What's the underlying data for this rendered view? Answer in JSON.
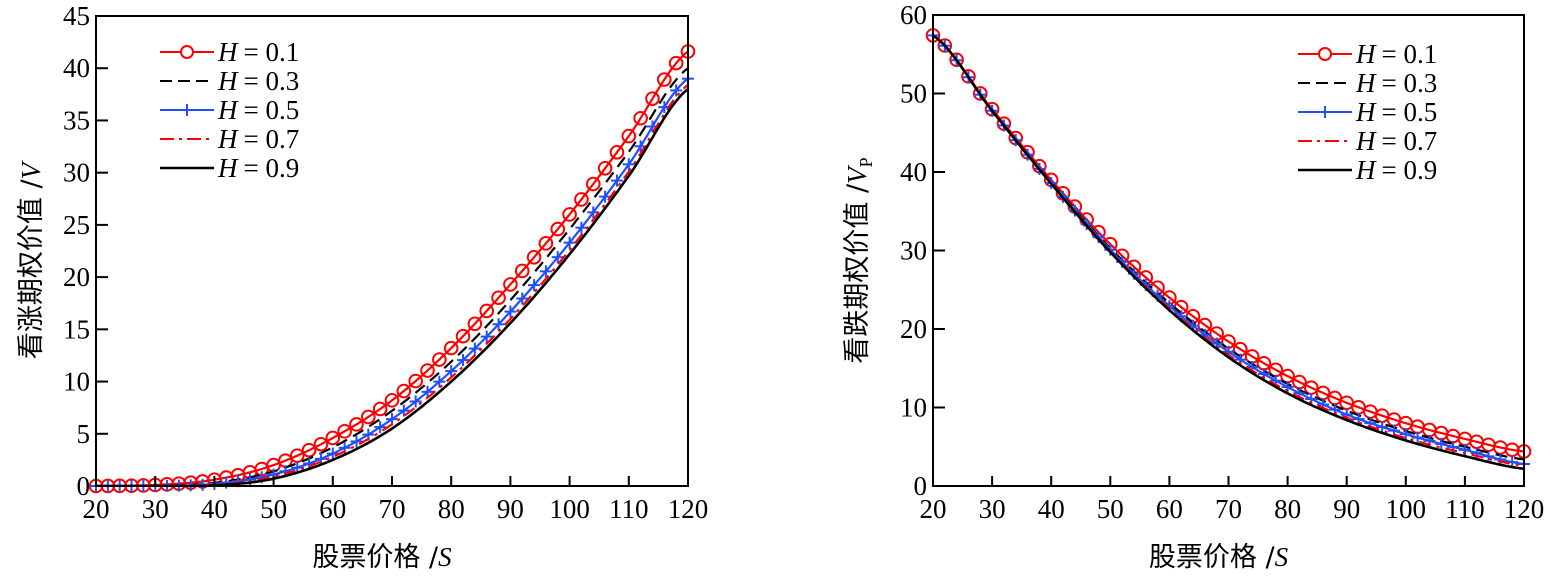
{
  "chart_data": [
    {
      "type": "line",
      "title": "",
      "xlabel": "股票价格 /",
      "xlabel_var": "S",
      "ylabel": "看涨期权价值 /",
      "ylabel_var": "V",
      "ylabel_sub": "",
      "xlim": [
        20,
        120
      ],
      "ylim": [
        0,
        45
      ],
      "xticks": [
        20,
        30,
        40,
        50,
        60,
        70,
        80,
        90,
        100,
        110,
        120
      ],
      "yticks": [
        0,
        5,
        10,
        15,
        20,
        25,
        30,
        35,
        40,
        45
      ],
      "grid": false,
      "legend_position": "top-left",
      "x": [
        20,
        30,
        40,
        50,
        60,
        70,
        80,
        90,
        100,
        110,
        120
      ],
      "series": [
        {
          "name": "H = 0.1",
          "var": "H",
          "value_label": "= 0.1",
          "color": "#ff0000",
          "style": "solid",
          "marker": "circle",
          "values": [
            0,
            0.1,
            0.6,
            2.0,
            4.6,
            8.2,
            13.2,
            19.3,
            26.0,
            33.5,
            41.6
          ]
        },
        {
          "name": "H = 0.3",
          "var": "H",
          "value_label": "= 0.3",
          "color": "#000000",
          "style": "dashed",
          "marker": "none",
          "values": [
            0,
            0,
            0.3,
            1.4,
            3.7,
            7.2,
            11.9,
            17.8,
            24.6,
            32.0,
            40.0
          ]
        },
        {
          "name": "H = 0.5",
          "var": "H",
          "value_label": "= 0.5",
          "color": "#1f4fff",
          "style": "solid",
          "marker": "plus",
          "values": [
            0,
            0,
            0.2,
            1.1,
            3.1,
            6.4,
            11.0,
            16.7,
            23.3,
            30.8,
            39.0
          ]
        },
        {
          "name": "H = 0.7",
          "var": "H",
          "value_label": "= 0.7",
          "color": "#ff0000",
          "style": "dashdot",
          "marker": "none",
          "values": [
            0,
            0,
            0.1,
            0.9,
            2.8,
            5.9,
            10.4,
            16.0,
            22.6,
            30.1,
            38.4
          ]
        },
        {
          "name": "H = 0.9",
          "var": "H",
          "value_label": "= 0.9",
          "color": "#000000",
          "style": "solid",
          "marker": "none",
          "values": [
            0,
            0,
            0.05,
            0.7,
            2.5,
            5.5,
            10.0,
            15.6,
            22.2,
            29.7,
            38.0
          ]
        }
      ]
    },
    {
      "type": "line",
      "title": "",
      "xlabel": "股票价格 /",
      "xlabel_var": "S",
      "ylabel": "看跌期权价值 /",
      "ylabel_var": "V",
      "ylabel_sub": "P",
      "xlim": [
        20,
        120
      ],
      "ylim": [
        0,
        60
      ],
      "xticks": [
        20,
        30,
        40,
        50,
        60,
        70,
        80,
        90,
        100,
        110,
        120
      ],
      "yticks": [
        0,
        10,
        20,
        30,
        40,
        50,
        60
      ],
      "grid": false,
      "legend_position": "top-right",
      "x": [
        20,
        30,
        40,
        50,
        60,
        70,
        80,
        90,
        100,
        110,
        120
      ],
      "series": [
        {
          "name": "H = 0.1",
          "var": "H",
          "value_label": "= 0.1",
          "color": "#ff0000",
          "style": "solid",
          "marker": "circle",
          "values": [
            57.4,
            48.0,
            39.0,
            30.8,
            24.0,
            18.4,
            14.0,
            10.6,
            8.0,
            6.0,
            4.4
          ]
        },
        {
          "name": "H = 0.3",
          "var": "H",
          "value_label": "= 0.3",
          "color": "#000000",
          "style": "dashed",
          "marker": "none",
          "values": [
            57.4,
            47.8,
            38.7,
            30.3,
            23.3,
            17.5,
            13.0,
            9.6,
            7.0,
            5.0,
            3.4
          ]
        },
        {
          "name": "H = 0.5",
          "var": "H",
          "value_label": "= 0.5",
          "color": "#1f4fff",
          "style": "solid",
          "marker": "plus",
          "values": [
            57.4,
            47.8,
            38.6,
            30.1,
            22.9,
            17.1,
            12.6,
            9.1,
            6.6,
            4.6,
            2.8
          ]
        },
        {
          "name": "H = 0.7",
          "var": "H",
          "value_label": "= 0.7",
          "color": "#ff0000",
          "style": "dashdot",
          "marker": "none",
          "values": [
            57.4,
            47.8,
            38.5,
            29.9,
            22.6,
            16.7,
            12.1,
            8.7,
            6.1,
            4.2,
            2.6
          ]
        },
        {
          "name": "H = 0.9",
          "var": "H",
          "value_label": "= 0.9",
          "color": "#000000",
          "style": "solid",
          "marker": "none",
          "values": [
            57.4,
            47.8,
            38.5,
            29.8,
            22.4,
            16.4,
            11.8,
            8.4,
            5.8,
            3.8,
            2.2
          ]
        }
      ]
    }
  ]
}
